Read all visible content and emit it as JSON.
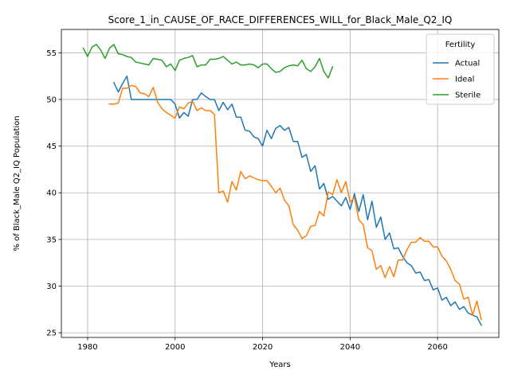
{
  "chart_data": {
    "type": "line",
    "title": "Score_1_in_CAUSE_OF_RACE_DIFFERENCES_WILL_for_Black_Male_Q2_IQ",
    "xlabel": "Years",
    "ylabel": "% of Black_Male Q2_IQ Population",
    "xlim": [
      1974,
      2074
    ],
    "ylim": [
      24.5,
      57.5
    ],
    "xticks": [
      1980,
      2000,
      2020,
      2040,
      2060
    ],
    "yticks": [
      25,
      30,
      35,
      40,
      45,
      50,
      55
    ],
    "grid": true,
    "legend": {
      "title": "Fertility",
      "placement": "top-right"
    },
    "series": [
      {
        "name": "Actual",
        "color": "#1f77b4",
        "x": [
          1986,
          1987,
          1988,
          1989,
          1990,
          1991,
          1992,
          1993,
          1994,
          1995,
          1996,
          1997,
          1998,
          1999,
          2000,
          2001,
          2002,
          2003,
          2004,
          2005,
          2006,
          2007,
          2008,
          2009,
          2010,
          2011,
          2012,
          2013,
          2014,
          2015,
          2016,
          2017,
          2018,
          2019,
          2020,
          2021,
          2022,
          2023,
          2024,
          2025,
          2026,
          2027,
          2028,
          2029,
          2030,
          2031,
          2032,
          2033,
          2034,
          2035,
          2036,
          2037,
          2038,
          2039,
          2040,
          2041,
          2042,
          2043,
          2044,
          2045,
          2046,
          2047,
          2048,
          2049,
          2050,
          2051,
          2052,
          2053,
          2054,
          2055,
          2056,
          2057,
          2058,
          2059,
          2060,
          2061,
          2062,
          2063,
          2064,
          2065,
          2066,
          2067,
          2068,
          2069,
          2070
        ],
        "values": [
          51.8,
          50.8,
          51.7,
          52.5,
          50.0,
          50.0,
          50.0,
          50.0,
          50.0,
          50.0,
          50.0,
          50.0,
          50.0,
          50.0,
          49.5,
          48.0,
          48.6,
          48.2,
          50.0,
          50.0,
          50.7,
          50.3,
          50.0,
          50.0,
          48.8,
          49.7,
          48.9,
          49.5,
          48.1,
          48.1,
          46.7,
          46.6,
          46.0,
          45.8,
          45.0,
          46.7,
          45.8,
          46.9,
          47.2,
          46.7,
          47.0,
          45.5,
          45.5,
          43.8,
          44.1,
          42.3,
          42.9,
          40.4,
          41.0,
          39.3,
          39.6,
          39.1,
          38.6,
          39.5,
          38.2,
          39.9,
          38.0,
          39.8,
          37.1,
          39.1,
          36.3,
          37.4,
          35.0,
          35.7,
          34.0,
          34.1,
          33.2,
          32.5,
          32.2,
          31.4,
          31.5,
          30.6,
          30.7,
          29.6,
          29.8,
          28.5,
          28.8,
          27.9,
          28.3,
          27.5,
          27.8,
          27.1,
          26.9,
          26.7,
          25.8
        ]
      },
      {
        "name": "Ideal",
        "color": "#ff7f0e",
        "x": [
          1985,
          1986,
          1987,
          1988,
          1989,
          1990,
          1991,
          1992,
          1993,
          1994,
          1995,
          1996,
          1997,
          1998,
          1999,
          2000,
          2001,
          2002,
          2003,
          2004,
          2005,
          2006,
          2007,
          2008,
          2009,
          2010,
          2011,
          2012,
          2013,
          2014,
          2015,
          2016,
          2017,
          2018,
          2019,
          2020,
          2021,
          2022,
          2023,
          2024,
          2025,
          2026,
          2027,
          2028,
          2029,
          2030,
          2031,
          2032,
          2033,
          2034,
          2035,
          2036,
          2037,
          2038,
          2039,
          2040,
          2041,
          2042,
          2043,
          2044,
          2045,
          2046,
          2047,
          2048,
          2049,
          2050,
          2051,
          2052,
          2053,
          2054,
          2055,
          2056,
          2057,
          2058,
          2059,
          2060,
          2061,
          2062,
          2063,
          2064,
          2065,
          2066,
          2067,
          2068,
          2069,
          2070
        ],
        "values": [
          49.5,
          49.5,
          49.6,
          51.2,
          51.2,
          51.5,
          51.4,
          50.7,
          50.6,
          50.3,
          51.3,
          49.7,
          49.0,
          48.6,
          48.3,
          48.0,
          49.2,
          49.0,
          49.6,
          49.8,
          48.8,
          49.1,
          48.8,
          48.8,
          48.4,
          40.0,
          40.2,
          39.0,
          41.2,
          40.3,
          42.3,
          41.5,
          41.8,
          41.6,
          41.4,
          41.3,
          41.3,
          40.7,
          40.0,
          40.5,
          39.2,
          38.6,
          36.6,
          36.0,
          35.1,
          35.4,
          36.4,
          36.5,
          38.0,
          37.5,
          40.1,
          39.8,
          41.4,
          40.0,
          41.2,
          39.0,
          39.5,
          37.1,
          36.6,
          34.1,
          33.8,
          31.8,
          32.2,
          30.9,
          32.1,
          31.0,
          32.8,
          32.8,
          33.9,
          34.7,
          34.7,
          35.2,
          34.8,
          34.8,
          34.2,
          34.2,
          33.2,
          32.7,
          31.8,
          30.6,
          30.2,
          28.6,
          28.8,
          26.9,
          28.4,
          26.4
        ]
      },
      {
        "name": "Sterile",
        "color": "#2ca02c",
        "x": [
          1979,
          1980,
          1981,
          1982,
          1983,
          1984,
          1985,
          1986,
          1987,
          1988,
          1989,
          1990,
          1991,
          1992,
          1993,
          1994,
          1995,
          1996,
          1997,
          1998,
          1999,
          2000,
          2001,
          2002,
          2003,
          2004,
          2005,
          2006,
          2007,
          2008,
          2009,
          2010,
          2011,
          2012,
          2013,
          2014,
          2015,
          2016,
          2017,
          2018,
          2019,
          2020,
          2021,
          2022,
          2023,
          2024,
          2025,
          2026,
          2027,
          2028,
          2029,
          2030,
          2031,
          2032,
          2033,
          2034,
          2035,
          2036
        ],
        "values": [
          55.5,
          54.6,
          55.6,
          55.9,
          55.3,
          54.4,
          55.5,
          55.9,
          54.9,
          54.8,
          54.6,
          54.5,
          54.0,
          53.9,
          53.8,
          53.7,
          54.4,
          54.3,
          54.2,
          53.5,
          53.8,
          53.1,
          54.2,
          54.4,
          54.5,
          54.7,
          53.5,
          53.7,
          53.7,
          54.3,
          54.3,
          54.4,
          54.6,
          54.2,
          53.8,
          54.0,
          53.7,
          53.7,
          53.8,
          53.7,
          53.4,
          53.8,
          53.8,
          53.3,
          52.9,
          53.0,
          53.4,
          53.6,
          53.7,
          53.6,
          54.2,
          53.3,
          53.0,
          53.5,
          54.4,
          53.0,
          52.3,
          53.5
        ]
      }
    ]
  }
}
